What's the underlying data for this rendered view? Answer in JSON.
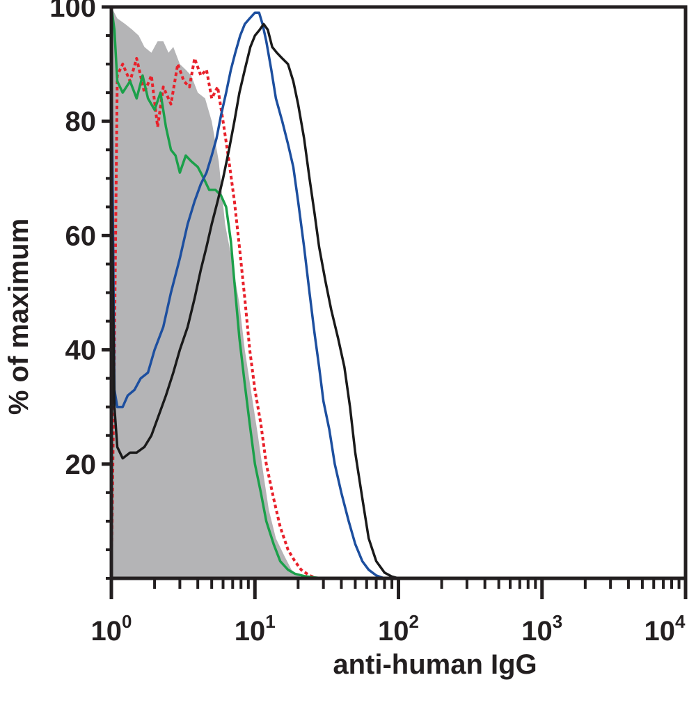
{
  "chart_data": {
    "type": "line",
    "xlabel": "anti-human IgG",
    "ylabel": "% of maximum",
    "x_scale": "log",
    "xlim": [
      1,
      10000
    ],
    "ylim": [
      0,
      100
    ],
    "x_ticks": [
      {
        "value": 1,
        "base": "10",
        "exp": "0"
      },
      {
        "value": 10,
        "base": "10",
        "exp": "1"
      },
      {
        "value": 100,
        "base": "10",
        "exp": "2"
      },
      {
        "value": 1000,
        "base": "10",
        "exp": "3"
      },
      {
        "value": 10000,
        "base": "10",
        "exp": "4"
      }
    ],
    "y_ticks": [
      {
        "value": 20,
        "label": "20"
      },
      {
        "value": 40,
        "label": "40"
      },
      {
        "value": 60,
        "label": "60"
      },
      {
        "value": 80,
        "label": "80"
      },
      {
        "value": 100,
        "label": "100"
      }
    ],
    "grid": false,
    "legend": "none",
    "series": [
      {
        "style": "filled",
        "color": "#b4b4b6",
        "x": [
          1.0,
          1.1,
          1.25,
          1.4,
          1.55,
          1.7,
          1.9,
          2.1,
          2.3,
          2.5,
          2.7,
          3.0,
          3.3,
          3.6,
          4.0,
          4.5,
          5.0,
          5.6,
          6.2,
          7.0,
          7.8,
          8.5,
          9.5,
          10.5,
          11.5,
          12.5,
          14.0,
          16.0,
          18.0,
          20.0,
          22.0
        ],
        "y": [
          100,
          98,
          97,
          96,
          95,
          93,
          92,
          94,
          94,
          92,
          93,
          90,
          89,
          88,
          85,
          84,
          80,
          73,
          62,
          55,
          48,
          40,
          32,
          25,
          18,
          12,
          7,
          4,
          1.5,
          0.5,
          0
        ]
      },
      {
        "style": "dotted",
        "color": "#e8212b",
        "x": [
          1.0,
          1.05,
          1.1,
          1.2,
          1.35,
          1.5,
          1.7,
          1.9,
          2.1,
          2.3,
          2.6,
          2.9,
          3.2,
          3.5,
          3.8,
          4.2,
          4.6,
          5.0,
          5.5,
          6.0,
          6.6,
          7.2,
          7.8,
          8.5,
          9.2,
          10.0,
          11.0,
          12.0,
          13.5,
          15.0,
          17.0,
          19.0,
          21.0,
          24.0,
          27.0
        ],
        "y": [
          1,
          40,
          88,
          90,
          87,
          91,
          85,
          88,
          79,
          86,
          83,
          90,
          87,
          86,
          91,
          88,
          89,
          84,
          86,
          80,
          73,
          66,
          58,
          49,
          40,
          33,
          27,
          20,
          14,
          9,
          5,
          3,
          1.5,
          0.5,
          0
        ]
      },
      {
        "style": "solid",
        "color": "#1ba04a",
        "x": [
          1.0,
          1.05,
          1.1,
          1.2,
          1.35,
          1.5,
          1.65,
          1.8,
          2.0,
          2.2,
          2.4,
          2.6,
          2.8,
          3.0,
          3.3,
          3.6,
          4.0,
          4.4,
          4.8,
          5.3,
          5.8,
          6.3,
          6.8,
          7.3,
          7.8,
          8.5,
          9.2,
          10.0,
          11.0,
          12.0,
          13.5,
          15.0,
          17.0,
          19.0,
          22.0,
          25.0,
          30.0,
          40.0,
          60.0
        ],
        "y": [
          100,
          96,
          87,
          85,
          87,
          84,
          88,
          84,
          82,
          85,
          79,
          75,
          74,
          71,
          74,
          73,
          72,
          70,
          68,
          68,
          67,
          65,
          59,
          50,
          42,
          34,
          27,
          20,
          15,
          10,
          6,
          3,
          1.5,
          0.8,
          0.4,
          0.2,
          0,
          0,
          0
        ]
      },
      {
        "style": "solid",
        "color": "#1d4f9f",
        "x": [
          1.0,
          1.05,
          1.1,
          1.2,
          1.3,
          1.45,
          1.6,
          1.8,
          2.0,
          2.3,
          2.6,
          3.0,
          3.4,
          3.8,
          4.2,
          4.6,
          5.0,
          5.4,
          5.8,
          6.3,
          6.8,
          7.3,
          7.9,
          8.5,
          9.2,
          10.0,
          10.7,
          11.3,
          12.0,
          13.0,
          14.0,
          15.5,
          17.0,
          18.5,
          20.0,
          22.0,
          24.0,
          26.0,
          28.0,
          30.0,
          33.0,
          36.0,
          40.0,
          45.0,
          50.0,
          56.0,
          62.0,
          70.0,
          80.0,
          100.0
        ],
        "y": [
          94,
          33,
          30,
          30,
          32,
          33,
          35,
          36,
          40,
          44,
          50,
          56,
          62,
          66,
          69,
          71,
          74,
          77,
          81,
          85,
          89,
          92,
          95,
          97,
          98,
          99,
          99,
          97,
          94,
          89,
          84,
          80,
          76,
          72,
          66,
          58,
          50,
          43,
          37,
          31,
          26,
          20,
          15,
          10,
          6,
          3,
          1.5,
          0.5,
          0,
          0
        ]
      },
      {
        "style": "solid",
        "color": "#1a1a1a",
        "x": [
          1.0,
          1.05,
          1.1,
          1.2,
          1.35,
          1.5,
          1.7,
          1.9,
          2.1,
          2.4,
          2.7,
          3.0,
          3.4,
          3.8,
          4.2,
          4.6,
          5.0,
          5.5,
          6.0,
          6.6,
          7.2,
          7.8,
          8.5,
          9.3,
          10.0,
          10.8,
          11.5,
          12.3,
          13.2,
          14.2,
          15.5,
          17.0,
          18.5,
          20.0,
          22.0,
          24.0,
          26.0,
          28.0,
          31.0,
          34.0,
          38.0,
          42.0,
          46.0,
          50.0,
          56.0,
          62.0,
          70.0,
          80.0,
          90.0,
          100.0,
          10000.0
        ],
        "y": [
          76,
          30,
          23,
          21,
          22,
          22,
          23,
          25,
          28,
          32,
          36,
          40,
          44,
          49,
          54,
          58,
          62,
          66,
          70,
          75,
          80,
          85,
          89,
          93,
          95,
          96,
          97,
          96,
          93,
          92,
          91,
          90,
          87,
          83,
          77,
          70,
          64,
          58,
          52,
          47,
          42,
          37,
          30,
          22,
          14,
          7,
          3,
          1,
          0.3,
          0,
          0
        ]
      }
    ]
  }
}
